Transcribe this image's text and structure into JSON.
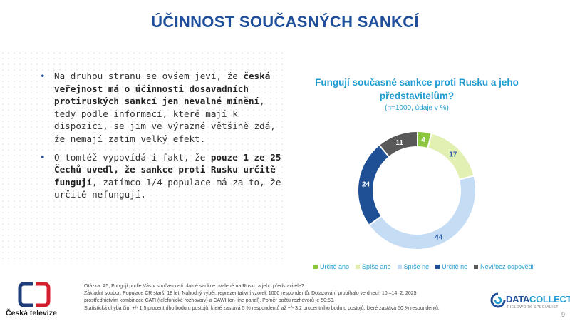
{
  "slide": {
    "title": "ÚČINNOST SOUČASNÝCH SANKCÍ",
    "page_number": "9"
  },
  "bullets": [
    {
      "parts": [
        {
          "text": "Na druhou stranu se ovšem jeví, že ",
          "bold": false
        },
        {
          "text": "česká veřejnost má o účinnosti dosavadních protiruských sankcí jen nevalné mínění",
          "bold": true
        },
        {
          "text": ", tedy podle informací, které mají k dispozici, se jim ve výrazné většině zdá, že nemají zatím velký efekt.",
          "bold": false
        }
      ]
    },
    {
      "parts": [
        {
          "text": "O tomtéž vypovídá i fakt, že ",
          "bold": false
        },
        {
          "text": "pouze 1 ze 25 Čechů uvedl, že sankce proti Rusku určitě fungují",
          "bold": true
        },
        {
          "text": ", zatímco 1/4 populace má za to, že určitě nefungují.",
          "bold": false
        }
      ]
    }
  ],
  "chart_data": {
    "type": "pie",
    "title": "Fungují současné sankce proti Rusku a jeho představitelům?",
    "subtitle": "(n=1000, údaje v %)",
    "series": [
      {
        "name": "Určitě ano",
        "value": 4,
        "color": "#8cc63f",
        "label_color": "#ffffff"
      },
      {
        "name": "Spíše ano",
        "value": 17,
        "color": "#e2f0b4",
        "label_color": "#2e5fa8"
      },
      {
        "name": "Spíše ne",
        "value": 44,
        "color": "#c5dcf5",
        "label_color": "#2e5fa8"
      },
      {
        "name": "Určitě ne",
        "value": 24,
        "color": "#1f5096",
        "label_color": "#ffffff"
      },
      {
        "name": "Neví/bez odpovědi",
        "value": 11,
        "color": "#595959",
        "label_color": "#ffffff"
      }
    ],
    "legend_position": "bottom"
  },
  "notes": [
    "Otázka: A5, Fungují podle Vás v současnosti platné sankce uvalené na Rusko a jeho představitele?",
    "Základní soubor: Populace ČR starší 18 let. Náhodný výběr, reprezentativní vzorek 1000 respondentů. Dotazování probíhalo ve dnech 10.–14. 2. 2025",
    "prostřednictvím kombinace CATI (telefonické rozhovory) a CAWI (on-line panel). Poměr počtu rozhovorů je 50:50.",
    "Statistická chyba činí +/- 1.5 procentního bodu u postojů, které zastává 5 % respondentů až +/- 3.2 procentního bodu u postojů, které zastává 50 % respondentů."
  ],
  "logos": {
    "left_text": "Česká televize",
    "right_main_1": "DATA",
    "right_main_2": "COLLECT",
    "right_sub": "FIELDWORK SPECIALIST"
  }
}
